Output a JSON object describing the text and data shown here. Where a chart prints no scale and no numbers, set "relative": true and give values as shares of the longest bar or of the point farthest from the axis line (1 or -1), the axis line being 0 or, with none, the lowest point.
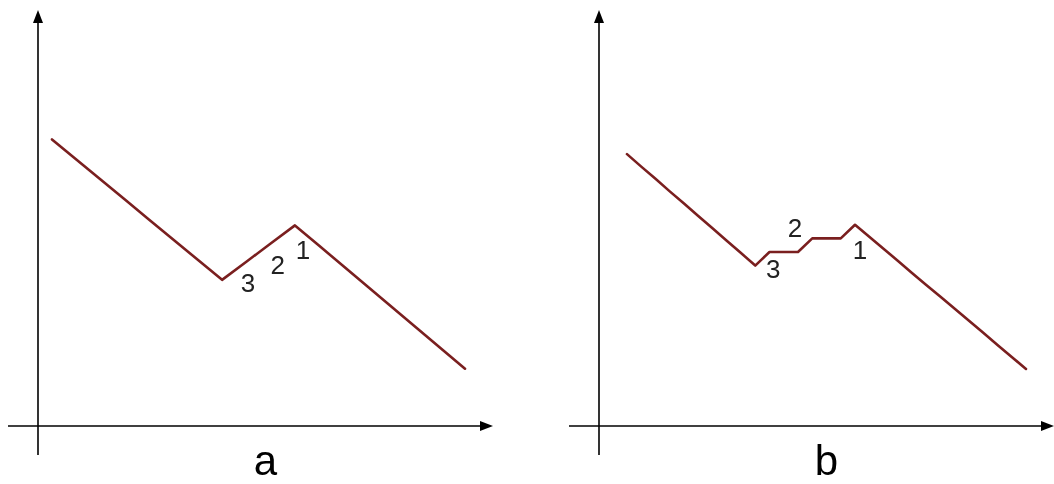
{
  "chart_data": [
    {
      "type": "line",
      "relative": true,
      "categories": [
        null,
        null,
        null,
        null,
        null,
        null,
        null,
        null,
        null,
        null,
        null,
        null,
        null,
        null,
        null,
        null,
        null,
        null
      ],
      "xlabel": "a",
      "series": [
        {
          "color": "#7a1f1f",
          "values": [
            1,
            0.93,
            0.86,
            0.79,
            0.72,
            0.65,
            0.58,
            0.51,
            0.573,
            0.637,
            0.7,
            0.629,
            0.557,
            0.486,
            0.414,
            0.343,
            0.271,
            0.2
          ]
        }
      ],
      "annotations": [
        "3",
        "2",
        "1"
      ]
    },
    {
      "type": "line",
      "relative": true,
      "categories": [
        null,
        null,
        null,
        null,
        null,
        null,
        null,
        null,
        null,
        null,
        null,
        null,
        null,
        null,
        null,
        null,
        null,
        null,
        null,
        null,
        null,
        null,
        null,
        null,
        null,
        null,
        null,
        null,
        null
      ],
      "xlabel": "b",
      "series": [
        {
          "color": "#7a1f1f",
          "values": [
            1,
            0.954,
            0.909,
            0.863,
            0.818,
            0.772,
            0.727,
            0.681,
            0.636,
            0.59,
            0.64,
            0.64,
            0.64,
            0.69,
            0.69,
            0.69,
            0.74,
            0.696,
            0.652,
            0.608,
            0.563,
            0.519,
            0.475,
            0.431,
            0.387,
            0.343,
            0.298,
            0.254,
            0.21
          ]
        }
      ],
      "annotations": [
        "3",
        "2",
        "1"
      ]
    }
  ]
}
